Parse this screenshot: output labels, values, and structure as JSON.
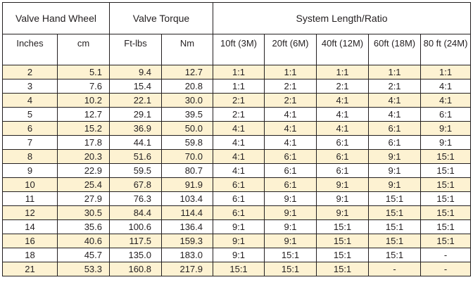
{
  "groups": {
    "hand_wheel": "Valve Hand Wheel",
    "torque": "Valve Torque",
    "system": "System Length/Ratio"
  },
  "columns": {
    "inches": "Inches",
    "cm": "cm",
    "ftlbs": "Ft-lbs",
    "nm": "Nm",
    "l10": "10ft (3M)",
    "l20": "20ft (6M)",
    "l40": "40ft (12M)",
    "l60": "60ft (18M)",
    "l80": "80 ft (24M)"
  },
  "rows": [
    [
      "2",
      "5.1",
      "9.4",
      "12.7",
      "1:1",
      "1:1",
      "1:1",
      "1:1",
      "1:1"
    ],
    [
      "3",
      "7.6",
      "15.4",
      "20.8",
      "1:1",
      "2:1",
      "2:1",
      "2:1",
      "4:1"
    ],
    [
      "4",
      "10.2",
      "22.1",
      "30.0",
      "2:1",
      "2:1",
      "4:1",
      "4:1",
      "4:1"
    ],
    [
      "5",
      "12.7",
      "29.1",
      "39.5",
      "2:1",
      "4:1",
      "4:1",
      "4:1",
      "6:1"
    ],
    [
      "6",
      "15.2",
      "36.9",
      "50.0",
      "4:1",
      "4:1",
      "4:1",
      "6:1",
      "9:1"
    ],
    [
      "7",
      "17.8",
      "44.1",
      "59.8",
      "4:1",
      "4:1",
      "6:1",
      "6:1",
      "9:1"
    ],
    [
      "8",
      "20.3",
      "51.6",
      "70.0",
      "4:1",
      "6:1",
      "6:1",
      "9:1",
      "15:1"
    ],
    [
      "9",
      "22.9",
      "59.5",
      "80.7",
      "4:1",
      "6:1",
      "6:1",
      "9:1",
      "15:1"
    ],
    [
      "10",
      "25.4",
      "67.8",
      "91.9",
      "6:1",
      "6:1",
      "9:1",
      "9:1",
      "15:1"
    ],
    [
      "11",
      "27.9",
      "76.3",
      "103.4",
      "6:1",
      "9:1",
      "9:1",
      "15:1",
      "15:1"
    ],
    [
      "12",
      "30.5",
      "84.4",
      "114.4",
      "6:1",
      "9:1",
      "9:1",
      "15:1",
      "15:1"
    ],
    [
      "14",
      "35.6",
      "100.6",
      "136.4",
      "9:1",
      "9:1",
      "15:1",
      "15:1",
      "15:1"
    ],
    [
      "16",
      "40.6",
      "117.5",
      "159.3",
      "9:1",
      "9:1",
      "15:1",
      "15:1",
      "15:1"
    ],
    [
      "18",
      "45.7",
      "135.0",
      "183.0",
      "9:1",
      "15:1",
      "15:1",
      "15:1",
      "-"
    ],
    [
      "21",
      "53.3",
      "160.8",
      "217.9",
      "15:1",
      "15:1",
      "15:1",
      "-",
      "-"
    ]
  ],
  "colors": {
    "stripe": "#fdf2d2",
    "border": "#231f20",
    "text": "#231f20"
  }
}
